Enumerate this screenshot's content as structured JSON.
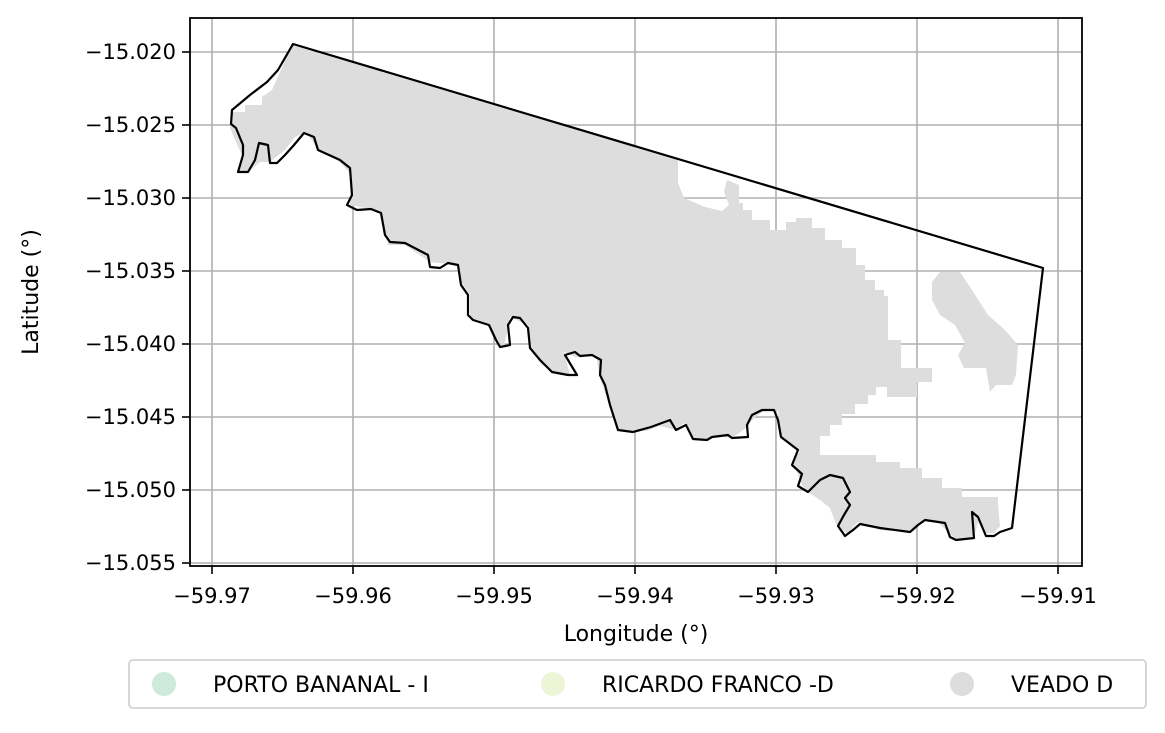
{
  "map": {
    "xlabel": "Longitude (°)",
    "ylabel": "Latitude (°)",
    "x_ticks": [
      "−59.97",
      "−59.96",
      "−59.95",
      "−59.94",
      "−59.93",
      "−59.92",
      "−59.91"
    ],
    "y_ticks": [
      "−15.020",
      "−15.025",
      "−15.030",
      "−15.035",
      "−15.040",
      "−15.045",
      "−15.050",
      "−15.055"
    ],
    "grid": true,
    "legend_placement": "bottom-center",
    "legend": [
      {
        "label": "PORTO BANANAL - I",
        "color": "#cdeadb"
      },
      {
        "label": "RICARDO FRANCO -D",
        "color": "#edf5d7"
      },
      {
        "label": "VEADO D",
        "color": "#dddddd"
      }
    ],
    "colors": {
      "fill": "#dddddd",
      "boundary": "#000000",
      "grid": "#b0b0b0"
    }
  }
}
